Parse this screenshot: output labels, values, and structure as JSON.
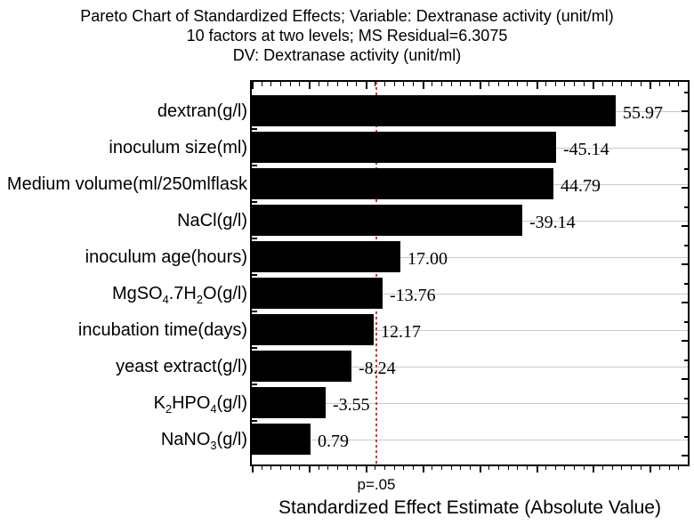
{
  "figure": {
    "title_lines": [
      "Pareto Chart of Standardized Effects; Variable: Dextranase activity (unit/ml)",
      "10 factors at two levels; MS Residual=6.3075",
      "DV: Dextranase activity (unit/ml)"
    ],
    "x_axis_label": "Standardized Effect Estimate (Absolute Value)",
    "p_line_label": "p=.05"
  },
  "chart_data": {
    "type": "bar",
    "orientation": "horizontal",
    "title": "Pareto Chart of Standardized Effects; Variable: Dextranase activity (unit/ml)",
    "subtitle": "10 factors at two levels; MS Residual=6.3075",
    "subtitle2": "DV: Dextranase activity (unit/ml)",
    "xlabel": "Standardized Effect Estimate (Absolute Value)",
    "ylabel": "",
    "legend": "none",
    "grid": "light horizontal gridline through each bar center",
    "categories": [
      "dextran(g/l)",
      "inoculum size(ml)",
      "Medium volume(ml/250mlflask",
      "NaCl(g/l)",
      "inoculum age(hours)",
      "MgSO4.7H2O(g/l)",
      "incubation time(days)",
      "yeast extract(g/l)",
      "K2HPO4(g/l)",
      "NaNO3(g/l)"
    ],
    "category_segments": [
      [
        {
          "t": "dextran(g/l)"
        }
      ],
      [
        {
          "t": "inoculum size(ml)"
        }
      ],
      [
        {
          "t": "Medium volume(ml/250mlflask"
        }
      ],
      [
        {
          "t": "NaCl(g/l)"
        }
      ],
      [
        {
          "t": "inoculum age(hours)"
        }
      ],
      [
        {
          "t": "MgSO"
        },
        {
          "t": "4",
          "sub": true
        },
        {
          "t": ".7H"
        },
        {
          "t": "2",
          "sub": true
        },
        {
          "t": "O(g/l)"
        }
      ],
      [
        {
          "t": "incubation time(days)"
        }
      ],
      [
        {
          "t": "yeast extract(g/l)"
        }
      ],
      [
        {
          "t": "K"
        },
        {
          "t": "2",
          "sub": true
        },
        {
          "t": "HPO"
        },
        {
          "t": "4",
          "sub": true
        },
        {
          "t": "(g/l)"
        }
      ],
      [
        {
          "t": "NaNO"
        },
        {
          "t": "3",
          "sub": true
        },
        {
          "t": "(g/l)"
        }
      ]
    ],
    "values": [
      55.97,
      -45.14,
      44.79,
      -39.14,
      17.0,
      -13.76,
      12.17,
      -8.24,
      -3.55,
      0.79
    ],
    "value_labels": [
      "55.97",
      "-45.14",
      "44.79",
      "-39.14",
      "17.00",
      "-13.76",
      "12.17",
      "-8.24",
      "-3.55",
      "0.79"
    ],
    "significance_line": {
      "label": "p=.05",
      "axis_value": 12.7,
      "style": "red dashed vertical"
    },
    "axis": {
      "min": -9.8,
      "max": 69,
      "tick_labels": "none shown",
      "note": "bars drawn from common baseline at axis minimum as in source image"
    },
    "artifact_label": {
      "text": "12.17",
      "behind_bar": "inoculum age(hours)",
      "note": "label mostly hidden under bar, bottom tips visible"
    },
    "bar_color": "#000000",
    "line_color": "#c04040",
    "grid_color": "#c9c9c9"
  }
}
